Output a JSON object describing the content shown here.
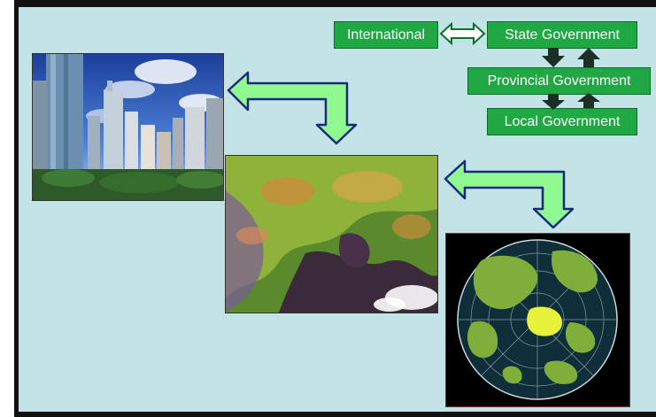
{
  "governance": {
    "international": "International",
    "state": "State Government",
    "provincial": "Provincial Government",
    "local": "Local Government"
  },
  "images": {
    "city": "city-skyline-photo",
    "satellite": "satellite-regional-image",
    "globe": "globe-map"
  },
  "colors": {
    "background": "#c2e4e6",
    "box_fill": "#1fa844",
    "arrow_fill": "#90f890",
    "arrow_stroke": "#1a2a7a",
    "vertical_arrows": "#1b2f25"
  }
}
